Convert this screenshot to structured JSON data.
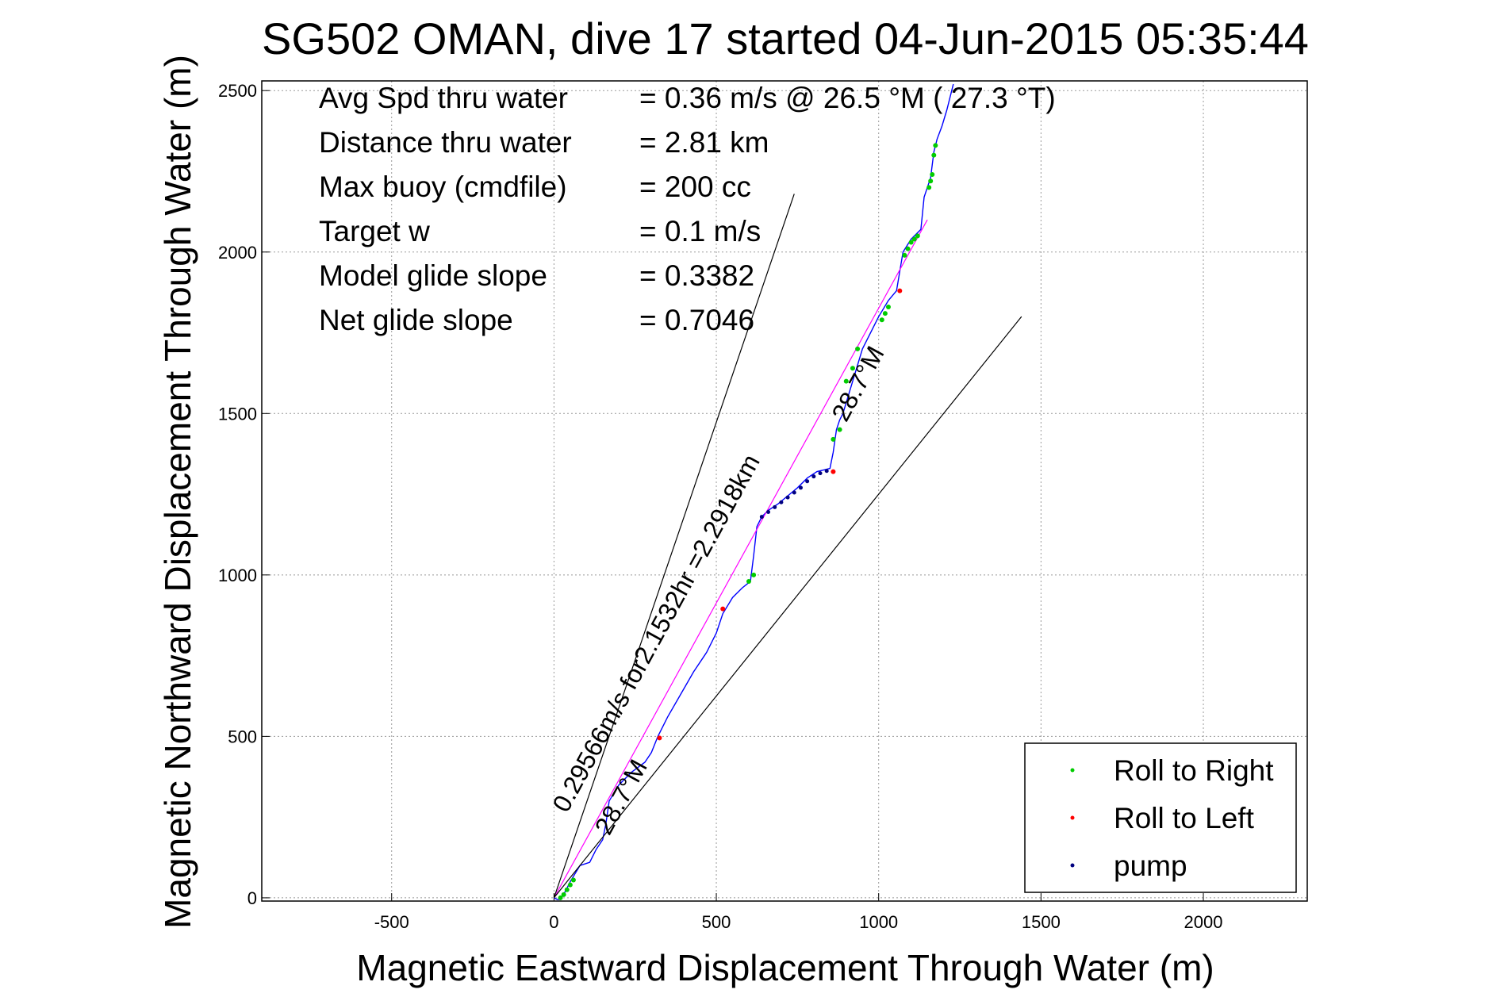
{
  "chart_data": {
    "type": "line",
    "title": "SG502 OMAN, dive 17 started 04-Jun-2015 05:35:44",
    "xlabel": "Magnetic Eastward Displacement Through Water (m)",
    "ylabel": "Magnetic Northward Displacement Through Water (m)",
    "xlim": [
      -900,
      2320
    ],
    "ylim": [
      -10,
      2530
    ],
    "xticks": [
      -500,
      0,
      500,
      1000,
      1500,
      2000
    ],
    "yticks": [
      0,
      500,
      1000,
      1500,
      2000,
      2500
    ],
    "grid": true,
    "legend_position": "bottom-right",
    "colors": {
      "track": "#0000ff",
      "roll_right": "#00cc00",
      "roll_left": "#ff0000",
      "pump": "#000080",
      "glide_line": "#ff00ff",
      "bounds": "#000000"
    },
    "stats": [
      {
        "label": "Avg Spd thru water",
        "value": "=  0.36 m/s @  26.5 °M ( 27.3 °T)"
      },
      {
        "label": "Distance thru water",
        "value": "=  2.81 km"
      },
      {
        "label": "Max buoy (cmdfile)",
        "value": "= 200 cc"
      },
      {
        "label": "Target w",
        "value": "= 0.1 m/s"
      },
      {
        "label": "Model glide slope",
        "value": "= 0.3382"
      },
      {
        "label": "Net glide slope",
        "value": "= 0.7046"
      }
    ],
    "annotations": [
      {
        "text": "0.29566m/s for2.1532hr =2.2918km",
        "at": [
          40,
          260
        ],
        "angle_deg": -61.3
      },
      {
        "text": "28.7°M",
        "at": [
          170,
          190
        ],
        "angle_deg": -61.3
      },
      {
        "text": "28.7°M",
        "at": [
          900,
          1470
        ],
        "angle_deg": -61.3
      }
    ],
    "legend": [
      {
        "label": "Roll to Right",
        "color": "#00cc00"
      },
      {
        "label": "Roll to Left",
        "color": "#ff0000"
      },
      {
        "label": "pump",
        "color": "#000080"
      }
    ],
    "series": [
      {
        "name": "track",
        "x": [
          0,
          10,
          20,
          35,
          50,
          80,
          110,
          130,
          150,
          160,
          170,
          200,
          240,
          280,
          300,
          320,
          350,
          390,
          430,
          470,
          500,
          520,
          550,
          580,
          605,
          615,
          625,
          640,
          660,
          690,
          720,
          750,
          780,
          810,
          830,
          850,
          860,
          870,
          880,
          890,
          905,
          920,
          935,
          950,
          975,
          1000,
          1030,
          1055,
          1065,
          1075,
          1100,
          1130,
          1135,
          1140,
          1150,
          1160,
          1165,
          1170,
          1180,
          1195,
          1210,
          1230
        ],
        "y": [
          0,
          -5,
          -5,
          20,
          50,
          100,
          110,
          150,
          180,
          230,
          300,
          350,
          390,
          420,
          450,
          500,
          560,
          630,
          700,
          760,
          820,
          880,
          930,
          960,
          980,
          1060,
          1150,
          1180,
          1200,
          1220,
          1245,
          1270,
          1300,
          1320,
          1325,
          1330,
          1380,
          1450,
          1480,
          1500,
          1550,
          1600,
          1650,
          1700,
          1750,
          1800,
          1850,
          1880,
          1940,
          2000,
          2040,
          2070,
          2120,
          2170,
          2200,
          2230,
          2270,
          2310,
          2350,
          2390,
          2440,
          2520
        ]
      },
      {
        "name": "glide path",
        "x": [
          0,
          1150
        ],
        "y": [
          0,
          2100
        ]
      },
      {
        "name": "bound upper",
        "x": [
          0,
          740
        ],
        "y": [
          0,
          2180
        ]
      },
      {
        "name": "bound lower",
        "x": [
          0,
          1440
        ],
        "y": [
          0,
          1800
        ]
      }
    ],
    "roll_right_points": {
      "x": [
        20,
        30,
        40,
        50,
        60,
        600,
        615,
        860,
        880,
        900,
        920,
        935,
        1010,
        1020,
        1030,
        1080,
        1090,
        1100,
        1110,
        1120,
        1155,
        1160,
        1165,
        1170,
        1175
      ],
      "y": [
        0,
        10,
        25,
        40,
        55,
        980,
        1000,
        1420,
        1450,
        1600,
        1640,
        1700,
        1790,
        1810,
        1830,
        1990,
        2010,
        2030,
        2040,
        2050,
        2200,
        2220,
        2240,
        2300,
        2330
      ]
    },
    "roll_left_points": {
      "x": [
        325,
        520,
        860,
        1065
      ],
      "y": [
        495,
        895,
        1320,
        1880
      ]
    },
    "pump_points": {
      "x": [
        640,
        660,
        680,
        700,
        720,
        740,
        760,
        780,
        800,
        820,
        840
      ],
      "y": [
        1180,
        1195,
        1210,
        1225,
        1240,
        1255,
        1270,
        1290,
        1305,
        1315,
        1322
      ]
    }
  }
}
